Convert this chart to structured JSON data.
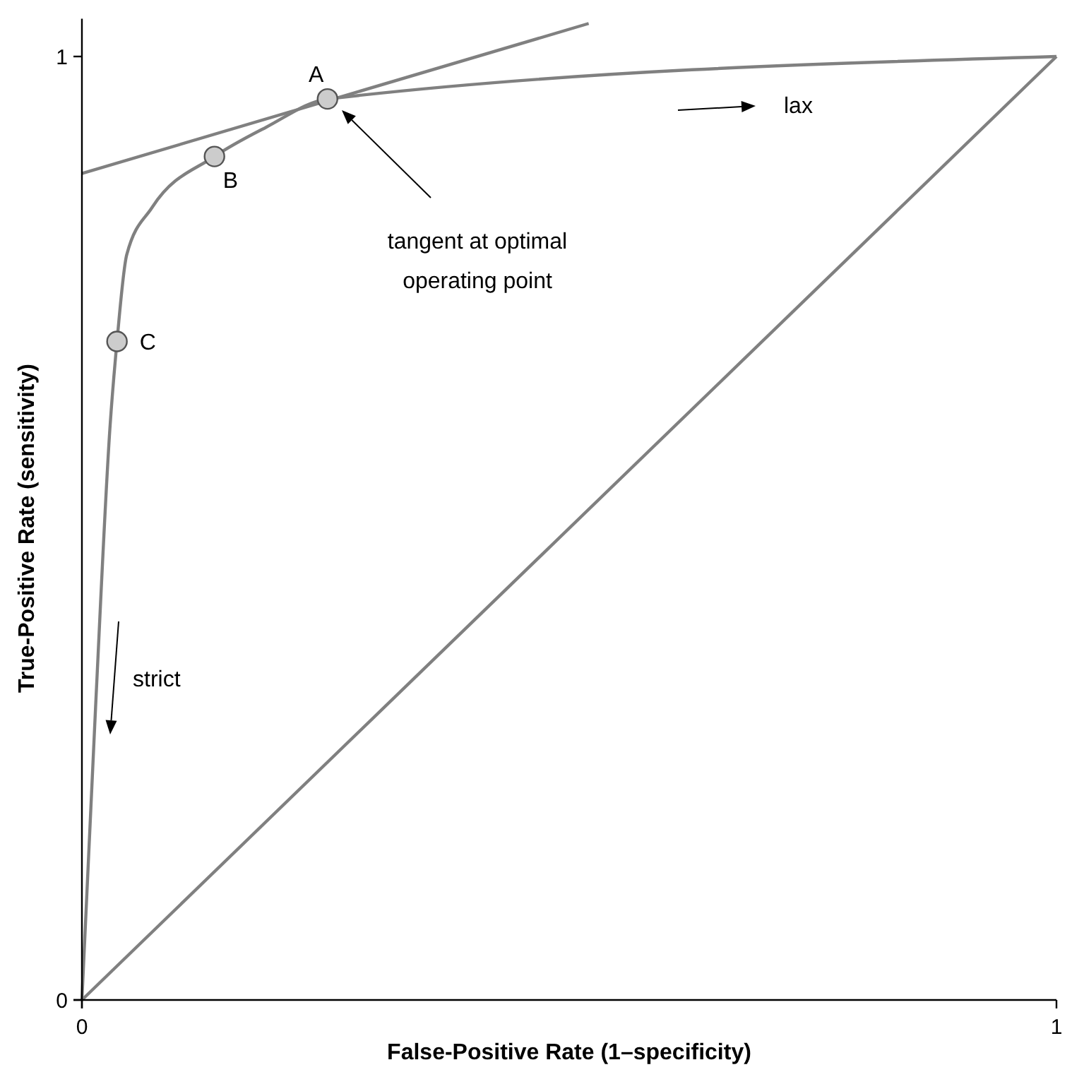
{
  "chart_data": {
    "type": "line",
    "xlabel": "False-Positive Rate (1–specificity)",
    "ylabel": "True-Positive Rate (sensitivity)",
    "xlim": [
      0,
      1
    ],
    "ylim": [
      0,
      1.04
    ],
    "xticks": [
      0,
      1
    ],
    "yticks": [
      0,
      1
    ],
    "grid": false,
    "series": [
      {
        "color": "#808080",
        "x": [
          0,
          0.014,
          0.029,
          0.036,
          0.046,
          0.072,
          0.136,
          0.189,
          0.252,
          1
        ],
        "values": [
          0,
          0.31,
          0.61,
          0.698,
          0.79,
          0.84,
          0.894,
          0.925,
          0.955,
          1
        ]
      },
      {
        "color": "#808080",
        "x": [
          0,
          1
        ],
        "values": [
          0,
          1
        ]
      },
      {
        "color": "#808080",
        "x": [
          0,
          0.52
        ],
        "values": [
          0.876,
          1.035
        ]
      },
      {
        "type": "scatter",
        "color": "#cccccc",
        "marker": "circle",
        "x": [
          0.036,
          0.136,
          0.252
        ],
        "values": [
          0.698,
          0.894,
          0.955
        ]
      }
    ],
    "annotations": [
      {
        "text": "A",
        "x": 0.252,
        "y": 0.955
      },
      {
        "text": "B",
        "x": 0.136,
        "y": 0.894
      },
      {
        "text": "C",
        "x": 0.036,
        "y": 0.698
      },
      "tangent at optimal operating point",
      "lax",
      "strict"
    ]
  }
}
